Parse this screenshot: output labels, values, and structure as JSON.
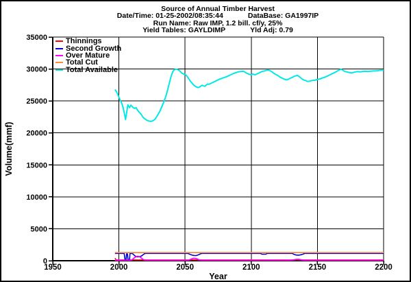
{
  "window": {
    "background": "#ffffff",
    "border_color": "#000000"
  },
  "header": {
    "title": "Source of Annual Timber Harvest",
    "datetime_label": "Date/Time: 01-25-2002/08:35:44",
    "database_label": "DataBase: GA1997IP",
    "run_name_label": "Run Name: Raw IMP, 1.2 bill. cf/y, 25%",
    "yield_tables_label": "Yield Tables: GAYLDIMP",
    "yield_adj_label": "Yld Adj: 0.79"
  },
  "chart_data": {
    "type": "line",
    "title": "Source of Annual Timber Harvest",
    "xlabel": "Year",
    "ylabel": "Volume(mmf)",
    "xlim": [
      1950,
      2200
    ],
    "ylim": [
      0,
      35000
    ],
    "xticks": [
      1950,
      2000,
      2050,
      2100,
      2150,
      2200
    ],
    "xtick_labels": [
      "1950",
      "2000",
      "2050",
      "2100",
      "2150",
      "2200"
    ],
    "yticks": [
      0,
      5000,
      10000,
      15000,
      20000,
      25000,
      30000,
      35000
    ],
    "ytick_labels": [
      "0",
      "5000",
      "10000",
      "15000",
      "20000",
      "25000",
      "30000",
      "35000"
    ],
    "grid": true,
    "grid_color": "#000000",
    "legend_position": "top-left",
    "series": [
      {
        "name": "Thinnings",
        "color": "#ff0000",
        "width": 1.4,
        "points": [
          [
            1997,
            420
          ],
          [
            1998,
            130
          ],
          [
            2200,
            130
          ]
        ]
      },
      {
        "name": "Second Growth",
        "color": "#0000dd",
        "width": 1.6,
        "points": [
          [
            1997,
            1150
          ],
          [
            2004,
            1150
          ],
          [
            2004.6,
            160
          ],
          [
            2005.4,
            160
          ],
          [
            2005.8,
            1080
          ],
          [
            2006.4,
            1080
          ],
          [
            2006.9,
            160
          ],
          [
            2008,
            160
          ],
          [
            2008.4,
            1150
          ],
          [
            2009.5,
            1150
          ],
          [
            2010.5,
            1080
          ],
          [
            2011.5,
            880
          ],
          [
            2012.5,
            700
          ],
          [
            2013.5,
            620
          ],
          [
            2014.5,
            600
          ],
          [
            2015.5,
            640
          ],
          [
            2016.5,
            700
          ],
          [
            2017.5,
            800
          ],
          [
            2018.5,
            980
          ],
          [
            2019.5,
            1120
          ],
          [
            2020.5,
            1150
          ],
          [
            2052,
            1150
          ],
          [
            2053.5,
            1020
          ],
          [
            2055,
            900
          ],
          [
            2056.5,
            830
          ],
          [
            2058,
            800
          ],
          [
            2059,
            840
          ],
          [
            2060,
            920
          ],
          [
            2061,
            1020
          ],
          [
            2062,
            1120
          ],
          [
            2063,
            1150
          ],
          [
            2107,
            1150
          ],
          [
            2108,
            1030
          ],
          [
            2111,
            1030
          ],
          [
            2112,
            1150
          ],
          [
            2131,
            1150
          ],
          [
            2132.5,
            980
          ],
          [
            2134,
            890
          ],
          [
            2136,
            870
          ],
          [
            2137.5,
            930
          ],
          [
            2139,
            1020
          ],
          [
            2140.5,
            1150
          ],
          [
            2200,
            1150
          ]
        ]
      },
      {
        "name": "Over Mature",
        "color": "#ff00ff",
        "width": 1.8,
        "points": [
          [
            1997,
            60
          ],
          [
            2009,
            60
          ],
          [
            2010,
            150
          ],
          [
            2011,
            340
          ],
          [
            2012,
            520
          ],
          [
            2013,
            640
          ],
          [
            2014,
            700
          ],
          [
            2015,
            670
          ],
          [
            2016,
            570
          ],
          [
            2017,
            420
          ],
          [
            2018,
            240
          ],
          [
            2019,
            120
          ],
          [
            2020,
            60
          ],
          [
            2052,
            60
          ],
          [
            2053.5,
            150
          ],
          [
            2055,
            290
          ],
          [
            2056.5,
            390
          ],
          [
            2058,
            370
          ],
          [
            2059,
            290
          ],
          [
            2060,
            190
          ],
          [
            2061,
            110
          ],
          [
            2062,
            60
          ],
          [
            2130,
            60
          ],
          [
            2132,
            130
          ],
          [
            2134,
            210
          ],
          [
            2136,
            210
          ],
          [
            2138,
            130
          ],
          [
            2140,
            60
          ],
          [
            2200,
            60
          ]
        ]
      },
      {
        "name": "Total Cut",
        "color": "#ff8b30",
        "width": 1.8,
        "points": [
          [
            1997,
            1280
          ],
          [
            2200,
            1280
          ]
        ]
      },
      {
        "name": "Total Available",
        "color": "#00e8e8",
        "width": 2,
        "points": [
          [
            1997,
            26800
          ],
          [
            1998,
            26500
          ],
          [
            1999,
            26100
          ],
          [
            2000,
            25600
          ],
          [
            2001,
            25100
          ],
          [
            2002,
            24700
          ],
          [
            2003,
            24100
          ],
          [
            2004,
            23200
          ],
          [
            2005,
            22100
          ],
          [
            2006,
            23400
          ],
          [
            2006.8,
            24400
          ],
          [
            2008,
            23950
          ],
          [
            2009,
            24350
          ],
          [
            2010,
            24150
          ],
          [
            2011,
            23900
          ],
          [
            2012,
            23850
          ],
          [
            2013,
            23950
          ],
          [
            2014,
            23600
          ],
          [
            2015,
            23300
          ],
          [
            2016,
            23100
          ],
          [
            2017,
            22850
          ],
          [
            2018,
            22500
          ],
          [
            2019,
            22300
          ],
          [
            2020,
            22150
          ],
          [
            2021,
            22000
          ],
          [
            2022,
            21900
          ],
          [
            2023,
            21850
          ],
          [
            2024,
            21800
          ],
          [
            2025,
            21850
          ],
          [
            2026,
            21950
          ],
          [
            2027,
            22100
          ],
          [
            2028,
            22350
          ],
          [
            2029,
            22700
          ],
          [
            2030,
            23050
          ],
          [
            2031,
            23400
          ],
          [
            2032,
            23900
          ],
          [
            2033,
            24400
          ],
          [
            2034,
            24900
          ],
          [
            2035,
            25450
          ],
          [
            2036,
            26100
          ],
          [
            2037,
            26900
          ],
          [
            2038,
            27700
          ],
          [
            2039,
            28500
          ],
          [
            2040,
            29200
          ],
          [
            2041,
            29700
          ],
          [
            2042,
            29900
          ],
          [
            2043,
            29950
          ],
          [
            2044,
            29950
          ],
          [
            2045,
            29850
          ],
          [
            2046,
            29700
          ],
          [
            2047,
            29450
          ],
          [
            2048,
            29300
          ],
          [
            2049,
            29200
          ],
          [
            2050,
            29150
          ],
          [
            2051,
            29000
          ],
          [
            2052,
            28700
          ],
          [
            2053,
            28400
          ],
          [
            2054,
            28100
          ],
          [
            2055,
            27850
          ],
          [
            2056,
            27600
          ],
          [
            2057,
            27400
          ],
          [
            2058,
            27250
          ],
          [
            2059,
            27150
          ],
          [
            2060,
            27100
          ],
          [
            2061,
            27200
          ],
          [
            2062,
            27350
          ],
          [
            2063,
            27450
          ],
          [
            2064,
            27350
          ],
          [
            2065,
            27300
          ],
          [
            2066,
            27500
          ],
          [
            2067,
            27650
          ],
          [
            2068,
            27600
          ],
          [
            2069,
            27700
          ],
          [
            2070,
            27800
          ],
          [
            2072,
            28000
          ],
          [
            2074,
            28200
          ],
          [
            2076,
            28400
          ],
          [
            2078,
            28550
          ],
          [
            2080,
            28700
          ],
          [
            2082,
            28850
          ],
          [
            2084,
            29050
          ],
          [
            2086,
            29250
          ],
          [
            2088,
            29400
          ],
          [
            2090,
            29550
          ],
          [
            2092,
            29600
          ],
          [
            2094,
            29650
          ],
          [
            2095,
            29550
          ],
          [
            2096,
            29400
          ],
          [
            2097,
            29300
          ],
          [
            2098,
            29200
          ],
          [
            2100,
            29100
          ],
          [
            2101,
            29200
          ],
          [
            2102,
            29150
          ],
          [
            2103,
            29100
          ],
          [
            2104,
            29200
          ],
          [
            2105,
            29300
          ],
          [
            2106,
            29400
          ],
          [
            2107,
            29500
          ],
          [
            2108,
            29600
          ],
          [
            2110,
            29700
          ],
          [
            2112,
            29850
          ],
          [
            2113,
            29850
          ],
          [
            2114,
            29750
          ],
          [
            2115,
            29650
          ],
          [
            2116,
            29500
          ],
          [
            2117,
            29350
          ],
          [
            2118,
            29200
          ],
          [
            2119,
            29100
          ],
          [
            2120,
            29000
          ],
          [
            2121,
            28850
          ],
          [
            2122,
            28700
          ],
          [
            2123,
            28600
          ],
          [
            2124,
            28500
          ],
          [
            2125,
            28400
          ],
          [
            2126,
            28350
          ],
          [
            2127,
            28300
          ],
          [
            2128,
            28400
          ],
          [
            2129,
            28500
          ],
          [
            2130,
            28600
          ],
          [
            2131,
            28700
          ],
          [
            2132,
            28800
          ],
          [
            2133,
            28900
          ],
          [
            2134,
            28950
          ],
          [
            2135,
            29000
          ],
          [
            2136,
            28850
          ],
          [
            2137,
            28700
          ],
          [
            2138,
            28500
          ],
          [
            2139,
            28350
          ],
          [
            2140,
            28250
          ],
          [
            2141,
            28200
          ],
          [
            2142,
            28100
          ],
          [
            2143,
            28050
          ],
          [
            2144,
            28100
          ],
          [
            2145,
            28150
          ],
          [
            2146,
            28200
          ],
          [
            2148,
            28250
          ],
          [
            2150,
            28350
          ],
          [
            2152,
            28450
          ],
          [
            2154,
            28600
          ],
          [
            2156,
            28750
          ],
          [
            2158,
            28950
          ],
          [
            2160,
            29150
          ],
          [
            2162,
            29350
          ],
          [
            2164,
            29550
          ],
          [
            2166,
            29800
          ],
          [
            2167,
            29900
          ],
          [
            2168,
            29950
          ],
          [
            2169,
            29850
          ],
          [
            2170,
            29700
          ],
          [
            2171,
            29600
          ],
          [
            2172,
            29550
          ],
          [
            2174,
            29450
          ],
          [
            2176,
            29400
          ],
          [
            2178,
            29500
          ],
          [
            2180,
            29600
          ],
          [
            2182,
            29550
          ],
          [
            2184,
            29600
          ],
          [
            2186,
            29650
          ],
          [
            2188,
            29600
          ],
          [
            2190,
            29650
          ],
          [
            2192,
            29700
          ],
          [
            2194,
            29700
          ],
          [
            2196,
            29750
          ],
          [
            2198,
            29800
          ],
          [
            2200,
            29800
          ]
        ]
      }
    ]
  }
}
